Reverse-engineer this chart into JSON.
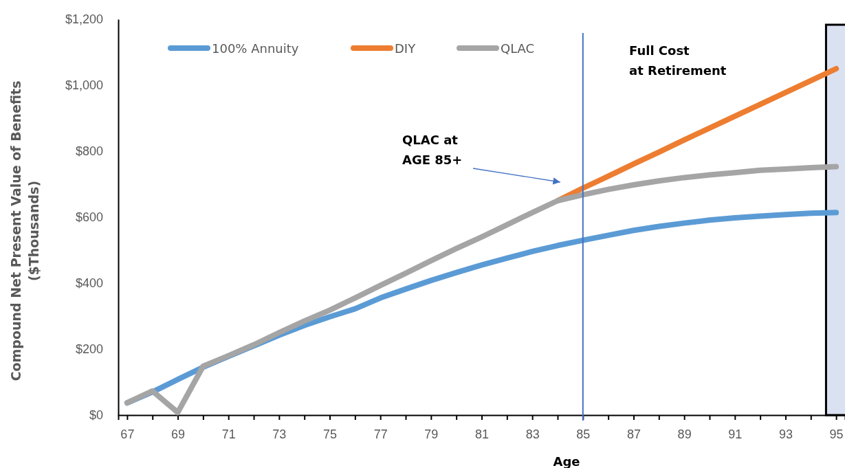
{
  "chart_data": {
    "type": "line",
    "xlabel": "Age",
    "ylabel": "Compound Net Present Value of Benefits\n($Thousands)",
    "x": [
      67,
      68,
      69,
      70,
      71,
      72,
      73,
      74,
      75,
      76,
      77,
      78,
      79,
      80,
      81,
      82,
      83,
      84,
      85,
      86,
      87,
      88,
      89,
      90,
      91,
      92,
      93,
      94,
      95
    ],
    "series": [
      {
        "name": "100% Annuity",
        "color": "#5b9bd5",
        "values": [
          37,
          70,
          108,
          145,
          178,
          210,
          242,
          272,
          298,
          322,
          355,
          382,
          408,
          432,
          455,
          476,
          496,
          514,
          530,
          545,
          560,
          572,
          582,
          591,
          598,
          603,
          608,
          612,
          614
        ]
      },
      {
        "name": "DIY",
        "color": "#ed7d31",
        "values": [
          null,
          null,
          null,
          null,
          null,
          null,
          null,
          null,
          null,
          null,
          null,
          null,
          null,
          null,
          null,
          null,
          null,
          650,
          688,
          724,
          761,
          797,
          834,
          870,
          906,
          942,
          978,
          1014,
          1050
        ]
      },
      {
        "name": "QLAC",
        "color": "#a5a5a5",
        "values": [
          37,
          73,
          8,
          148,
          180,
          213,
          250,
          285,
          318,
          355,
          393,
          430,
          468,
          505,
          540,
          577,
          614,
          650,
          668,
          684,
          698,
          710,
          720,
          728,
          735,
          742,
          746,
          750,
          753
        ]
      }
    ],
    "xlim": [
      66.65,
      95.35
    ],
    "xticks": [
      67,
      {
        "value": 68,
        "label": null
      },
      69,
      {
        "value": 70,
        "label": null
      },
      71,
      {
        "value": 72,
        "label": null
      },
      73,
      {
        "value": 74,
        "label": null
      },
      75,
      {
        "value": 76,
        "label": null
      },
      77,
      {
        "value": 78,
        "label": null
      },
      79,
      {
        "value": 80,
        "label": null
      },
      81,
      {
        "value": 82,
        "label": null
      },
      83,
      {
        "value": 84,
        "label": null
      },
      85,
      {
        "value": 86,
        "label": null
      },
      87,
      {
        "value": 88,
        "label": null
      },
      89,
      {
        "value": 90,
        "label": null
      },
      91,
      {
        "value": 92,
        "label": null
      },
      93,
      {
        "value": 94,
        "label": null
      },
      95
    ],
    "ylim": [
      0,
      1200
    ],
    "yticks": [
      {
        "value": 0,
        "label": "$0"
      },
      {
        "value": 200,
        "label": "$200"
      },
      {
        "value": 400,
        "label": "$400"
      },
      {
        "value": 600,
        "label": "$600"
      },
      {
        "value": 800,
        "label": "$800"
      },
      {
        "value": 1000,
        "label": "$1,000"
      },
      {
        "value": 1200,
        "label": "$1,200"
      }
    ],
    "ref_lines": [
      {
        "axis": "x",
        "value": 85,
        "color": "#4472c4"
      }
    ],
    "bands": [
      {
        "axis": "x",
        "from": 94.56,
        "to": 95.35,
        "color": "#dae1f1"
      }
    ],
    "annotations": [
      "QLAC at\nAGE 85+",
      "Full Cost\nat Retirement"
    ],
    "legend": "top",
    "grid": false,
    "marker": "none",
    "line_style": "solid"
  }
}
